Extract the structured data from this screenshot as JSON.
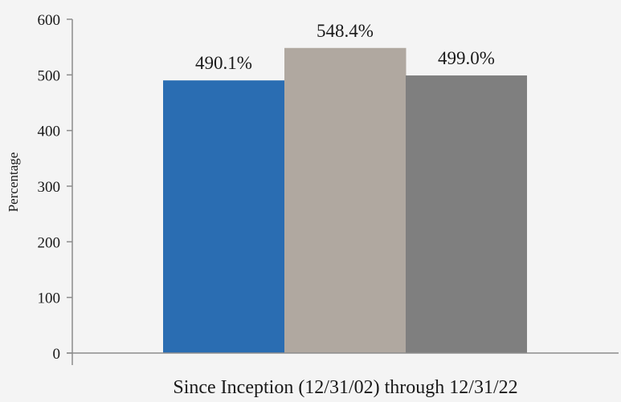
{
  "chart_data": {
    "type": "bar",
    "categories": [
      "Since Inception (12/31/02) through 12/31/22"
    ],
    "series": [
      {
        "values": [
          490.1
        ],
        "color": "#2a6db2",
        "data_label": "490.1%"
      },
      {
        "values": [
          548.4
        ],
        "color": "#b0a8a0",
        "data_label": "548.4%"
      },
      {
        "values": [
          499.0
        ],
        "color": "#7f7f7f",
        "data_label": "499.0%"
      }
    ],
    "ylabel": "Percentage",
    "ylim": [
      0,
      600
    ],
    "yticks": [
      "0",
      "100",
      "200",
      "300",
      "400",
      "500",
      "600"
    ],
    "legend": "none",
    "grid": false
  }
}
